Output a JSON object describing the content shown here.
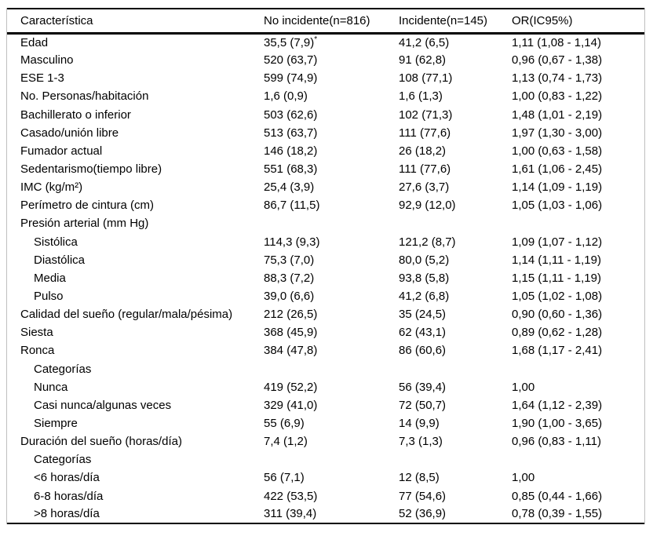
{
  "page": {
    "background_color": "#ffffff",
    "text_color": "#000000",
    "rule_color": "#000000",
    "side_border_color": "#bfbfbf"
  },
  "table": {
    "columns": [
      "Característica",
      "No incidente(n=816)",
      "Incidente(n=145)",
      "OR(IC95%)"
    ],
    "rows": [
      {
        "label": "Edad",
        "indent": 0,
        "no_incidente": "35,5 (7,9)",
        "no_incidente_sup": "*",
        "incidente": "41,2 (6,5)",
        "or": "1,11 (1,08 - 1,14)"
      },
      {
        "label": "Masculino",
        "indent": 0,
        "no_incidente": "520 (63,7)",
        "incidente": "91 (62,8)",
        "or": "0,96 (0,67 - 1,38)"
      },
      {
        "label": "ESE 1-3",
        "indent": 0,
        "no_incidente": "599 (74,9)",
        "incidente": "108 (77,1)",
        "or": "1,13 (0,74 - 1,73)"
      },
      {
        "label": "No. Personas/habitación",
        "indent": 0,
        "no_incidente": "1,6 (0,9)",
        "incidente": "1,6 (1,3)",
        "or": "1,00 (0,83 - 1,22)"
      },
      {
        "label": "Bachillerato o inferior",
        "indent": 0,
        "no_incidente": "503 (62,6)",
        "incidente": "102 (71,3)",
        "or": "1,48 (1,01 - 2,19)"
      },
      {
        "label": "Casado/unión libre",
        "indent": 0,
        "no_incidente": "513 (63,7)",
        "incidente": "111 (77,6)",
        "or": "1,97 (1,30 - 3,00)"
      },
      {
        "label": "Fumador actual",
        "indent": 0,
        "no_incidente": "146 (18,2)",
        "incidente": "26 (18,2)",
        "or": "1,00 (0,63 - 1,58)"
      },
      {
        "label": "Sedentarismo(tiempo libre)",
        "indent": 0,
        "no_incidente": "551 (68,3)",
        "incidente": "111 (77,6)",
        "or": "1,61 (1,06 - 2,45)"
      },
      {
        "label": "IMC (kg/m²)",
        "indent": 0,
        "no_incidente": "25,4 (3,9)",
        "incidente": "27,6 (3,7)",
        "or": "1,14 (1,09 - 1,19)"
      },
      {
        "label": "Perímetro de cintura (cm)",
        "indent": 0,
        "no_incidente": "86,7 (11,5)",
        "incidente": "92,9 (12,0)",
        "or": "1,05 (1,03 - 1,06)"
      },
      {
        "label": "Presión arterial (mm Hg)",
        "indent": 0,
        "no_incidente": "",
        "incidente": "",
        "or": ""
      },
      {
        "label": "Sistólica",
        "indent": 1,
        "no_incidente": "114,3 (9,3)",
        "incidente": "121,2 (8,7)",
        "or": "1,09 (1,07 - 1,12)"
      },
      {
        "label": "Diastólica",
        "indent": 1,
        "no_incidente": "75,3 (7,0)",
        "incidente": "80,0 (5,2)",
        "or": "1,14 (1,11 - 1,19)"
      },
      {
        "label": "Media",
        "indent": 1,
        "no_incidente": "88,3 (7,2)",
        "incidente": "93,8 (5,8)",
        "or": "1,15 (1,11 - 1,19)"
      },
      {
        "label": "Pulso",
        "indent": 1,
        "no_incidente": "39,0 (6,6)",
        "incidente": "41,2 (6,8)",
        "or": "1,05 (1,02 - 1,08)"
      },
      {
        "label": "Calidad del sueño (regular/mala/pésima)",
        "indent": 0,
        "no_incidente": "212 (26,5)",
        "incidente": "35 (24,5)",
        "or": "0,90 (0,60 - 1,36)"
      },
      {
        "label": "Siesta",
        "indent": 0,
        "no_incidente": "368 (45,9)",
        "incidente": "62 (43,1)",
        "or": "0,89 (0,62 - 1,28)"
      },
      {
        "label": "Ronca",
        "indent": 0,
        "no_incidente": "384 (47,8)",
        "incidente": "86 (60,6)",
        "or": "1,68 (1,17 - 2,41)"
      },
      {
        "label": "Categorías",
        "indent": 1,
        "no_incidente": "",
        "incidente": "",
        "or": ""
      },
      {
        "label": "Nunca",
        "indent": 1,
        "no_incidente": "419 (52,2)",
        "incidente": "56 (39,4)",
        "or": "1,00"
      },
      {
        "label": "Casi nunca/algunas veces",
        "indent": 1,
        "no_incidente": "329 (41,0)",
        "incidente": "72 (50,7)",
        "or": "1,64 (1,12 - 2,39)"
      },
      {
        "label": "Siempre",
        "indent": 1,
        "no_incidente": "55 (6,9)",
        "incidente": "14 (9,9)",
        "or": "1,90 (1,00 - 3,65)"
      },
      {
        "label": "Duración del sueño (horas/día)",
        "indent": 0,
        "no_incidente": "7,4 (1,2)",
        "incidente": "7,3 (1,3)",
        "or": "0,96 (0,83 - 1,11)"
      },
      {
        "label": "Categorías",
        "indent": 1,
        "no_incidente": "",
        "incidente": "",
        "or": ""
      },
      {
        "label": "<6 horas/día",
        "indent": 1,
        "no_incidente": "56 (7,1)",
        "incidente": "12 (8,5)",
        "or": "1,00"
      },
      {
        "label": "6-8 horas/día",
        "indent": 1,
        "no_incidente": "422 (53,5)",
        "incidente": "77 (54,6)",
        "or": "0,85 (0,44 - 1,66)"
      },
      {
        "label": ">8 horas/día",
        "indent": 1,
        "no_incidente": "311 (39,4)",
        "incidente": "52 (36,9)",
        "or": "0,78 (0,39 - 1,55)"
      }
    ]
  }
}
